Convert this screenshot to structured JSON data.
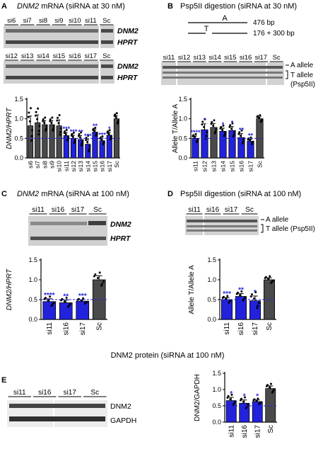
{
  "figure": {
    "panels": {
      "A": {
        "letter": "A",
        "title_italic": "DNM2",
        "title_rest": " mRNA (siRNA at 30 nM)",
        "gel1": {
          "lanes": [
            "si6",
            "si7",
            "si8",
            "si9",
            "si10",
            "si11",
            "Sc"
          ],
          "rows": [
            "DNM2",
            "HPRT"
          ]
        },
        "gel2": {
          "lanes": [
            "si12",
            "si13",
            "si14",
            "si15",
            "si16",
            "si17",
            "Sc"
          ],
          "rows": [
            "DNM2",
            "HPRT"
          ]
        }
      },
      "B": {
        "letter": "B",
        "title": "Psp5II digestion (siRNA at 30 nM)",
        "diagram": {
          "allele_a_letter": "A",
          "allele_t_letter": "T",
          "allele_a_size": "476 bp",
          "allele_t_size": "176 + 300 bp"
        },
        "gel_lanes": [
          "si11",
          "si12",
          "si13",
          "si14",
          "si15",
          "si16",
          "si17",
          "Sc"
        ],
        "labels": {
          "a_allele": "A allele",
          "t_allele": "T allele",
          "psp": "(Psp5II)"
        }
      },
      "C": {
        "letter": "C",
        "title_italic": "DNM2",
        "title_rest": " mRNA (siRNA at 100 nM)",
        "gel_lanes": [
          "si11",
          "si16",
          "si17",
          "Sc"
        ],
        "rows": [
          "DNM2",
          "HPRT"
        ]
      },
      "D": {
        "letter": "D",
        "title": "Psp5II digestion (siRNA at 100 nM)",
        "gel_lanes": [
          "si11",
          "si16",
          "si17",
          "Sc"
        ],
        "labels": {
          "a_allele": "A allele",
          "t_allele": "T allele (Psp5II)"
        }
      },
      "E": {
        "letter": "E",
        "section_title": "DNM2 protein (siRNA at 100 nM)",
        "gel_lanes": [
          "si11",
          "si16",
          "si17",
          "Sc"
        ],
        "rows": [
          "DNM2",
          "GAPDH"
        ]
      }
    }
  },
  "chart_data": [
    {
      "id": "A",
      "type": "bar",
      "ylabel": "DNM2/HPRT",
      "categories": [
        "si6",
        "si7",
        "si8",
        "si9",
        "si10",
        "si11",
        "si12",
        "si13",
        "si14",
        "si15",
        "si16",
        "si17",
        "Sc"
      ],
      "values": [
        0.82,
        0.9,
        0.85,
        0.85,
        0.82,
        0.57,
        0.5,
        0.47,
        0.35,
        0.66,
        0.44,
        0.58,
        1.0
      ],
      "errors": [
        0.25,
        0.2,
        0.1,
        0.1,
        0.15,
        0.08,
        0.08,
        0.1,
        0.12,
        0.06,
        0.06,
        0.07,
        0.08
      ],
      "significance": [
        "",
        "",
        "",
        "",
        "",
        "***",
        "***",
        "**",
        "***",
        "**",
        "***",
        "*",
        ""
      ],
      "bar_colors": [
        "#4a4a4a",
        "#4a4a4a",
        "#4a4a4a",
        "#4a4a4a",
        "#4a4a4a",
        "#2222dd",
        "#2222dd",
        "#2222dd",
        "#2222dd",
        "#2222dd",
        "#2222dd",
        "#2222dd",
        "#4a4a4a"
      ],
      "ylim": [
        0,
        1.5
      ],
      "yticks": [
        "0.0",
        "0.5",
        "1.0",
        "1.5"
      ],
      "reference_line": 0.5
    },
    {
      "id": "B",
      "type": "bar",
      "ylabel": "Allele T/Allele A",
      "categories": [
        "si11",
        "si12",
        "si13",
        "si14",
        "si15",
        "si16",
        "si17",
        "Sc"
      ],
      "values": [
        0.5,
        0.72,
        0.78,
        0.68,
        0.7,
        0.52,
        0.43,
        1.0
      ],
      "errors": [
        0.06,
        0.15,
        0.1,
        0.08,
        0.1,
        0.1,
        0.05,
        0.05
      ],
      "significance": [
        "****",
        "*",
        "",
        "*",
        "*",
        "**",
        "**",
        ""
      ],
      "bar_colors": [
        "#2222dd",
        "#2222dd",
        "#4a4a4a",
        "#2222dd",
        "#2222dd",
        "#2222dd",
        "#2222dd",
        "#4a4a4a"
      ],
      "ylim": [
        0,
        1.5
      ],
      "yticks": [
        "0.0",
        "0.5",
        "1.0",
        "1.5"
      ],
      "reference_line": 0.5
    },
    {
      "id": "C",
      "type": "bar",
      "ylabel": "DNM2/HPRT",
      "categories": [
        "si11",
        "si16",
        "si17",
        "Sc"
      ],
      "values": [
        0.45,
        0.42,
        0.46,
        1.0
      ],
      "errors": [
        0.07,
        0.07,
        0.04,
        0.1
      ],
      "significance": [
        "****",
        "**",
        "***",
        ""
      ],
      "bar_colors": [
        "#2222dd",
        "#2222dd",
        "#2222dd",
        "#4a4a4a"
      ],
      "ylim": [
        0,
        1.5
      ],
      "yticks": [
        "0.0",
        "0.5",
        "1.0",
        "1.5"
      ],
      "reference_line": 0.5
    },
    {
      "id": "D",
      "type": "bar",
      "ylabel": "Allele T/Allele A",
      "categories": [
        "si11",
        "si16",
        "si17",
        "Sc"
      ],
      "values": [
        0.5,
        0.58,
        0.47,
        1.0
      ],
      "errors": [
        0.05,
        0.07,
        0.12,
        0.05
      ],
      "significance": [
        "***",
        "**",
        "*",
        ""
      ],
      "bar_colors": [
        "#2222dd",
        "#2222dd",
        "#2222dd",
        "#4a4a4a"
      ],
      "ylim": [
        0,
        1.5
      ],
      "yticks": [
        "0.0",
        "0.5",
        "1.0",
        "1.5"
      ],
      "reference_line": 0.5
    },
    {
      "id": "E",
      "type": "bar",
      "ylabel": "DNM2/GAPDH",
      "categories": [
        "si11",
        "si16",
        "si17",
        "Sc"
      ],
      "values": [
        0.66,
        0.58,
        0.63,
        1.03
      ],
      "errors": [
        0.1,
        0.1,
        0.05,
        0.08
      ],
      "significance": [
        "*",
        "*",
        "*",
        ""
      ],
      "bar_colors": [
        "#2222dd",
        "#2222dd",
        "#2222dd",
        "#4a4a4a"
      ],
      "ylim": [
        0,
        1.5
      ],
      "yticks": [
        "0.0",
        "0.5",
        "1.0",
        "1.5"
      ],
      "reference_line": 0.5
    }
  ]
}
